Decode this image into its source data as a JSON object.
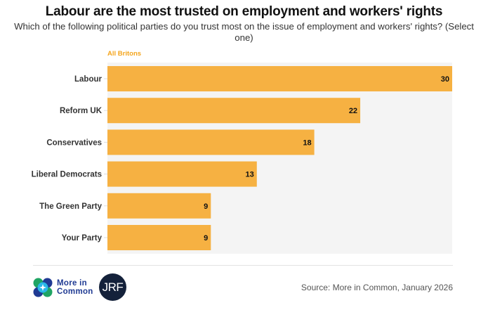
{
  "chart_data": {
    "type": "bar",
    "orientation": "horizontal",
    "title": "Labour are the most trusted on employment and workers' rights",
    "subtitle": "Which of the following political parties do you trust most on the issue of employment and workers' rights? (Select one)",
    "series_label": "All Britons",
    "categories": [
      "Labour",
      "Reform UK",
      "Conservatives",
      "Liberal Democrats",
      "The Green Party",
      "Your Party"
    ],
    "values": [
      30,
      22,
      18,
      13,
      9,
      9
    ],
    "xlabel": "",
    "ylabel": "",
    "xlim": [
      0,
      30
    ],
    "grid": false,
    "bar_color": "#f6b142",
    "background_color": "#f4f4f4",
    "value_labels": [
      "30",
      "22",
      "18",
      "13",
      "9",
      "9"
    ]
  },
  "footer": {
    "logo_more_in_common_line1": "More in",
    "logo_more_in_common_line2": "Common",
    "logo_jrf": "JRF",
    "source": "Source: More in Common, January 2026"
  }
}
